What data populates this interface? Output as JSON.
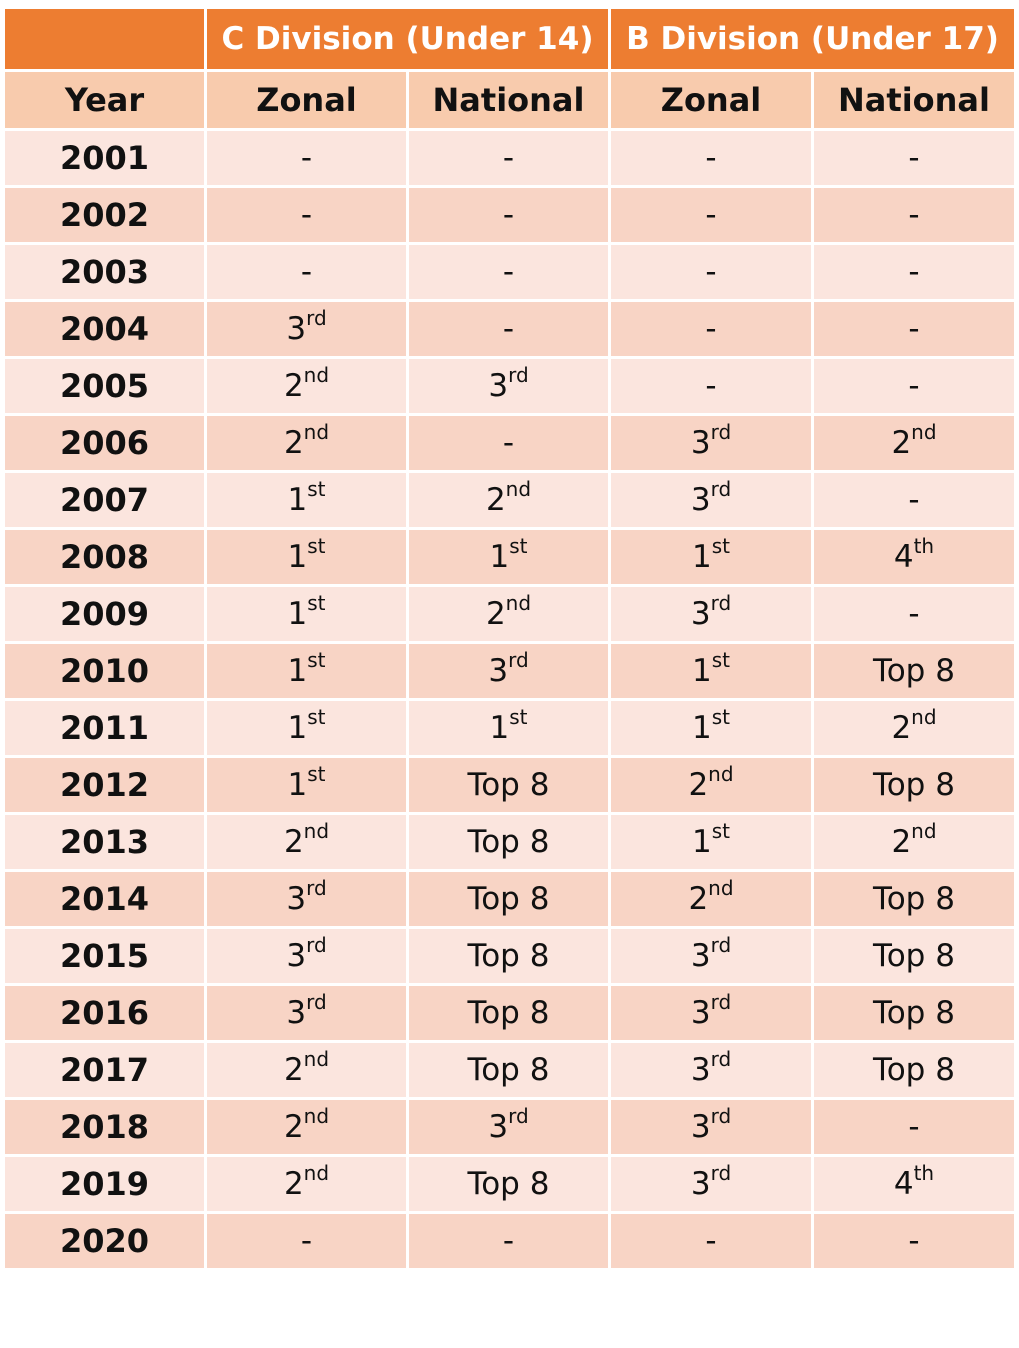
{
  "header": {
    "blank": "",
    "c_division": "C Division (Under 14)",
    "b_division": "B Division (Under 17)"
  },
  "columns": [
    "Year",
    "Zonal",
    "National",
    "Zonal",
    "National"
  ],
  "colors": {
    "header_bg": "#ed7d31",
    "subheader_bg": "#f8cbad",
    "row_light": "#fbe5de",
    "row_dark": "#f8d4c5"
  },
  "rows": [
    {
      "year": "2001",
      "cells": [
        [
          "-",
          ""
        ],
        [
          "-",
          ""
        ],
        [
          "-",
          ""
        ],
        [
          "-",
          ""
        ]
      ]
    },
    {
      "year": "2002",
      "cells": [
        [
          "-",
          ""
        ],
        [
          "-",
          ""
        ],
        [
          "-",
          ""
        ],
        [
          "-",
          ""
        ]
      ]
    },
    {
      "year": "2003",
      "cells": [
        [
          "-",
          ""
        ],
        [
          "-",
          ""
        ],
        [
          "-",
          ""
        ],
        [
          "-",
          ""
        ]
      ]
    },
    {
      "year": "2004",
      "cells": [
        [
          "3",
          "rd"
        ],
        [
          "-",
          ""
        ],
        [
          "-",
          ""
        ],
        [
          "-",
          ""
        ]
      ]
    },
    {
      "year": "2005",
      "cells": [
        [
          "2",
          "nd"
        ],
        [
          "3",
          "rd"
        ],
        [
          "-",
          ""
        ],
        [
          "-",
          ""
        ]
      ]
    },
    {
      "year": "2006",
      "cells": [
        [
          "2",
          "nd"
        ],
        [
          "-",
          ""
        ],
        [
          "3",
          "rd"
        ],
        [
          "2",
          "nd"
        ]
      ]
    },
    {
      "year": "2007",
      "cells": [
        [
          "1",
          "st"
        ],
        [
          "2",
          "nd"
        ],
        [
          "3",
          "rd"
        ],
        [
          "-",
          ""
        ]
      ]
    },
    {
      "year": "2008",
      "cells": [
        [
          "1",
          "st"
        ],
        [
          "1",
          "st"
        ],
        [
          "1",
          "st"
        ],
        [
          "4",
          "th"
        ]
      ]
    },
    {
      "year": "2009",
      "cells": [
        [
          "1",
          "st"
        ],
        [
          "2",
          "nd"
        ],
        [
          "3",
          "rd"
        ],
        [
          "-",
          ""
        ]
      ]
    },
    {
      "year": "2010",
      "cells": [
        [
          "1",
          "st"
        ],
        [
          "3",
          "rd"
        ],
        [
          "1",
          "st"
        ],
        [
          "Top 8",
          ""
        ]
      ]
    },
    {
      "year": "2011",
      "cells": [
        [
          "1",
          "st"
        ],
        [
          "1",
          "st"
        ],
        [
          "1",
          "st"
        ],
        [
          "2",
          "nd"
        ]
      ]
    },
    {
      "year": "2012",
      "cells": [
        [
          "1",
          "st"
        ],
        [
          "Top 8",
          ""
        ],
        [
          "2",
          "nd"
        ],
        [
          "Top 8",
          ""
        ]
      ]
    },
    {
      "year": "2013",
      "cells": [
        [
          "2",
          "nd"
        ],
        [
          "Top 8",
          ""
        ],
        [
          "1",
          "st"
        ],
        [
          "2",
          "nd"
        ]
      ]
    },
    {
      "year": "2014",
      "cells": [
        [
          "3",
          "rd"
        ],
        [
          "Top 8",
          ""
        ],
        [
          "2",
          "nd"
        ],
        [
          "Top 8",
          ""
        ]
      ]
    },
    {
      "year": "2015",
      "cells": [
        [
          "3",
          "rd"
        ],
        [
          "Top 8",
          ""
        ],
        [
          "3",
          "rd"
        ],
        [
          "Top 8",
          ""
        ]
      ]
    },
    {
      "year": "2016",
      "cells": [
        [
          "3",
          "rd"
        ],
        [
          "Top 8",
          ""
        ],
        [
          "3",
          "rd"
        ],
        [
          "Top 8",
          ""
        ]
      ]
    },
    {
      "year": "2017",
      "cells": [
        [
          "2",
          "nd"
        ],
        [
          "Top 8",
          ""
        ],
        [
          "3",
          "rd"
        ],
        [
          "Top 8",
          ""
        ]
      ]
    },
    {
      "year": "2018",
      "cells": [
        [
          "2",
          "nd"
        ],
        [
          "3",
          "rd"
        ],
        [
          "3",
          "rd"
        ],
        [
          "-",
          ""
        ]
      ]
    },
    {
      "year": "2019",
      "cells": [
        [
          "2",
          "nd"
        ],
        [
          "Top 8",
          ""
        ],
        [
          "3",
          "rd"
        ],
        [
          "4",
          "th"
        ]
      ]
    },
    {
      "year": "2020",
      "cells": [
        [
          "-",
          ""
        ],
        [
          "-",
          ""
        ],
        [
          "-",
          ""
        ],
        [
          "-",
          ""
        ]
      ]
    }
  ]
}
